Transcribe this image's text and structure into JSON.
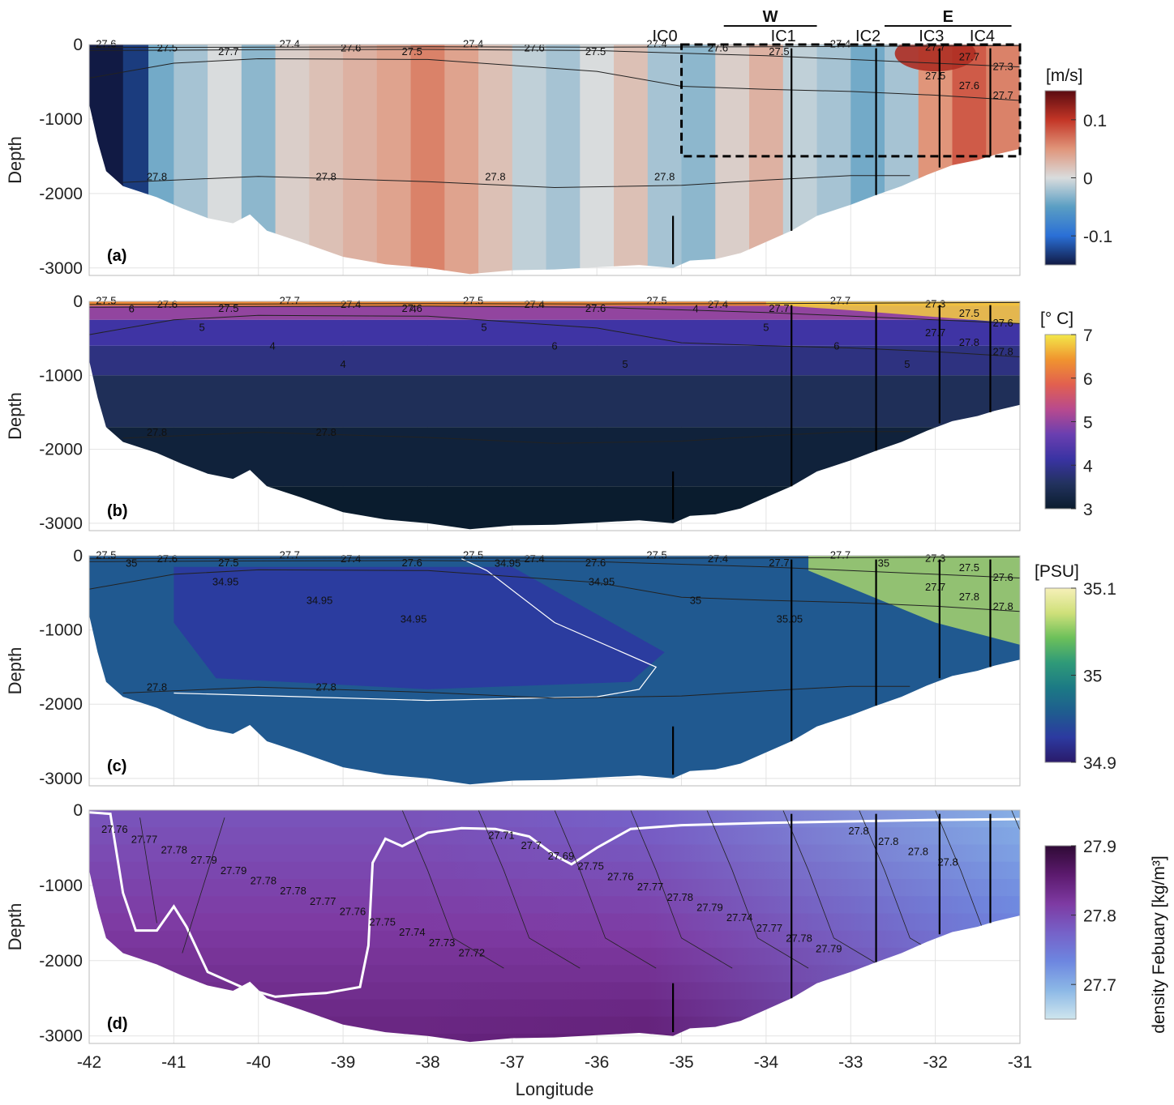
{
  "chart_data": [
    {
      "type": "heatmap",
      "panel_label": "(a)",
      "quantity_units": "[m/s]",
      "ylabel": "Depth",
      "ylim": [
        -3100,
        0
      ],
      "xlim": [
        -42,
        -31
      ],
      "yticks": [
        "0",
        "-1000",
        "-2000",
        "-3000"
      ],
      "color_range": [
        -0.15,
        0.15
      ],
      "colorbar_ticks": [
        "0.1",
        "0",
        "-0.1"
      ],
      "colorbar_tick_values": [
        0.1,
        0,
        -0.1
      ],
      "colormap": [
        "#111a44",
        "#2a6fd6",
        "#5a9ec3",
        "#d9dcdd",
        "#e0957a",
        "#c33526",
        "#5a0b10"
      ],
      "columns": [
        {
          "lon": -42.0,
          "v": -0.15
        },
        {
          "lon": -41.6,
          "v": -0.13
        },
        {
          "lon": -41.3,
          "v": -0.04
        },
        {
          "lon": -41.0,
          "v": -0.02
        },
        {
          "lon": -40.6,
          "v": 0.0
        },
        {
          "lon": -40.2,
          "v": -0.03
        },
        {
          "lon": -39.8,
          "v": 0.01
        },
        {
          "lon": -39.4,
          "v": 0.02
        },
        {
          "lon": -39.0,
          "v": 0.03
        },
        {
          "lon": -38.6,
          "v": 0.04
        },
        {
          "lon": -38.2,
          "v": 0.06
        },
        {
          "lon": -37.8,
          "v": 0.04
        },
        {
          "lon": -37.4,
          "v": 0.02
        },
        {
          "lon": -37.0,
          "v": -0.01
        },
        {
          "lon": -36.6,
          "v": -0.02
        },
        {
          "lon": -36.2,
          "v": 0.0
        },
        {
          "lon": -35.8,
          "v": 0.02
        },
        {
          "lon": -35.4,
          "v": -0.02
        },
        {
          "lon": -35.0,
          "v": -0.03
        },
        {
          "lon": -34.6,
          "v": 0.01
        },
        {
          "lon": -34.2,
          "v": 0.03
        },
        {
          "lon": -33.8,
          "v": -0.01
        },
        {
          "lon": -33.4,
          "v": -0.02
        },
        {
          "lon": -33.0,
          "v": -0.04
        },
        {
          "lon": -32.6,
          "v": -0.02
        },
        {
          "lon": -32.2,
          "v": 0.05
        },
        {
          "lon": -31.8,
          "v": 0.08
        },
        {
          "lon": -31.4,
          "v": 0.06
        },
        {
          "lon": -31.0,
          "v": 0.04
        }
      ],
      "isopycnals": [
        {
          "level": "27.5",
          "points": [
            [
              -42,
              -40
            ],
            [
              -40,
              -35
            ],
            [
              -38,
              -30
            ],
            [
              -36,
              -35
            ],
            [
              -34,
              -30
            ],
            [
              -32,
              -20
            ],
            [
              -31,
              -15
            ]
          ]
        },
        {
          "level": "27.6",
          "points": [
            [
              -42,
              -80
            ],
            [
              -40,
              -70
            ],
            [
              -38,
              -65
            ],
            [
              -36,
              -80
            ],
            [
              -34,
              -150
            ],
            [
              -32,
              -250
            ],
            [
              -31,
              -300
            ]
          ]
        },
        {
          "level": "27.7",
          "points": [
            [
              -42,
              -450
            ],
            [
              -41,
              -250
            ],
            [
              -40,
              -190
            ],
            [
              -38,
              -200
            ],
            [
              -36,
              -360
            ],
            [
              -35,
              -560
            ],
            [
              -34,
              -600
            ],
            [
              -33,
              -630
            ],
            [
              -32,
              -680
            ],
            [
              -31,
              -750
            ]
          ]
        },
        {
          "level": "27.8",
          "points": [
            [
              -41.6,
              -1850
            ],
            [
              -40,
              -1770
            ],
            [
              -38,
              -1840
            ],
            [
              -36.5,
              -1920
            ],
            [
              -35,
              -1890
            ],
            [
              -34,
              -1820
            ],
            [
              -33,
              -1760
            ],
            [
              -32.3,
              -1760
            ]
          ]
        }
      ],
      "contour_labels": [
        "27.6",
        "27.5",
        "27.7",
        "27.4",
        "27.6",
        "27.5",
        "27.4",
        "27.6",
        "27.5",
        "27.4",
        "27.6",
        "27.5",
        "27.4",
        "27.7",
        "27.7",
        "27.3",
        "27.5",
        "27.6",
        "27.7",
        "27.8",
        "27.8",
        "27.8",
        "27.8"
      ],
      "moorings": [
        {
          "name": "IC0",
          "lon": -35.1,
          "bottom": -2950,
          "top": -2300
        },
        {
          "name": "IC1",
          "lon": -33.7,
          "bottom": -2500,
          "top": -50
        },
        {
          "name": "IC2",
          "lon": -32.7,
          "bottom": -2020,
          "top": -50
        },
        {
          "name": "IC3",
          "lon": -31.95,
          "bottom": -1650,
          "top": -50
        },
        {
          "name": "IC4",
          "lon": -31.35,
          "bottom": -1500,
          "top": -50
        }
      ],
      "regions": [
        {
          "name": "W",
          "lon_start": -34.5,
          "lon_end": -33.4
        },
        {
          "name": "E",
          "lon_start": -32.6,
          "lon_end": -31.1
        }
      ],
      "box": {
        "lon_start": -35,
        "lon_end": -31,
        "depth_start": 0,
        "depth_end": -1500
      }
    },
    {
      "type": "heatmap",
      "panel_label": "(b)",
      "quantity_units": "[° C]",
      "ylabel": "Depth",
      "ylim": [
        -3100,
        0
      ],
      "xlim": [
        -42,
        -31
      ],
      "yticks": [
        "0",
        "-1000",
        "-2000",
        "-3000"
      ],
      "color_range": [
        3,
        7
      ],
      "colorbar_ticks": [
        "7",
        "6",
        "5",
        "4",
        "3"
      ],
      "colorbar_tick_values": [
        7,
        6,
        5,
        4,
        3
      ],
      "colormap": [
        "#0a1c2e",
        "#22325e",
        "#3a33a3",
        "#6b3fb0",
        "#b84a8e",
        "#e2604f",
        "#f0942f",
        "#f3e84a"
      ],
      "layers": [
        {
          "top": 0,
          "bottom": -60,
          "value": 6.3
        },
        {
          "top": -60,
          "bottom": -250,
          "value": 5.0
        },
        {
          "top": -250,
          "bottom": -600,
          "value": 4.2
        },
        {
          "top": -600,
          "bottom": -1000,
          "value": 3.85
        },
        {
          "top": -1000,
          "bottom": -1700,
          "value": 3.5
        },
        {
          "top": -1700,
          "bottom": -2500,
          "value": 3.15
        },
        {
          "top": -2500,
          "bottom": -3200,
          "value": 3.0
        }
      ],
      "isotherm_labels": [
        "6",
        "5",
        "4",
        "4",
        "4",
        "5",
        "6",
        "5",
        "4",
        "5",
        "6",
        "5"
      ],
      "contour_labels": [
        "27.5",
        "27.6",
        "27.5",
        "27.7",
        "27.4",
        "27.6",
        "27.5",
        "27.4",
        "27.6",
        "27.5",
        "27.4",
        "27.7",
        "27.7",
        "27.3",
        "27.5",
        "27.6",
        "27.7",
        "27.8",
        "27.8",
        "27.8",
        "27.8"
      ]
    },
    {
      "type": "heatmap",
      "panel_label": "(c)",
      "quantity_units": "[PSU]",
      "ylabel": "Depth",
      "ylim": [
        -3100,
        0
      ],
      "xlim": [
        -42,
        -31
      ],
      "yticks": [
        "0",
        "-1000",
        "-2000",
        "-3000"
      ],
      "color_range": [
        34.9,
        35.1
      ],
      "colorbar_ticks": [
        "35.1",
        "35",
        "34.9"
      ],
      "colorbar_tick_values": [
        35.1,
        35.0,
        34.9
      ],
      "colormap": [
        "#2a1a6a",
        "#2c3aa0",
        "#1f5c8f",
        "#1c7a85",
        "#2f9a78",
        "#6cc05a",
        "#cfe07a",
        "#f6f0b8"
      ],
      "salinity_core": {
        "lon_start": -41,
        "lon_end": -35.2,
        "depth_top": -150,
        "depth_bottom": -1700,
        "value": 34.93
      },
      "isohaline_labels": [
        "35",
        "34.95",
        "34.95",
        "34.95",
        "34.95",
        "34.95",
        "35",
        "35.05",
        "35"
      ],
      "contour_labels": [
        "27.5",
        "27.6",
        "27.5",
        "27.7",
        "27.4",
        "27.6",
        "27.5",
        "27.4",
        "27.6",
        "27.5",
        "27.4",
        "27.7",
        "27.7",
        "27.3",
        "27.5",
        "27.6",
        "27.7",
        "27.8",
        "27.8",
        "27.8",
        "27.8"
      ]
    },
    {
      "type": "heatmap",
      "panel_label": "(d)",
      "quantity_units": "density Febuary [kg/m³]",
      "ylabel": "Depth",
      "xlabel": "Longitude",
      "ylim": [
        -3100,
        0
      ],
      "xlim": [
        -42,
        -31
      ],
      "yticks": [
        "0",
        "-1000",
        "-2000",
        "-3000"
      ],
      "xticks": [
        "-42",
        "-41",
        "-40",
        "-39",
        "-38",
        "-37",
        "-36",
        "-35",
        "-34",
        "-33",
        "-32",
        "-31"
      ],
      "color_range": [
        27.65,
        27.9
      ],
      "colorbar_ticks": [
        "27.9",
        "27.8",
        "27.7"
      ],
      "colorbar_tick_values": [
        27.9,
        27.8,
        27.7
      ],
      "colormap": [
        "#cfe6ee",
        "#8cb8e6",
        "#6d86e0",
        "#7661c8",
        "#7e3aa2",
        "#5c1a6e",
        "#2f0a35"
      ],
      "contour_labels": [
        "27.76",
        "27.77",
        "27.78",
        "27.79",
        "27.79",
        "27.78",
        "27.78",
        "27.77",
        "27.76",
        "27.75",
        "27.74",
        "27.73",
        "27.72",
        "27.71",
        "27.7",
        "27.69",
        "27.75",
        "27.76",
        "27.77",
        "27.78",
        "27.79",
        "27.74",
        "27.77",
        "27.78",
        "27.79",
        "27.8",
        "27.8",
        "27.8",
        "27.8"
      ],
      "mixed_layer_depth": [
        [
          -42,
          -30
        ],
        [
          -41.75,
          -50
        ],
        [
          -41.6,
          -1100
        ],
        [
          -41.45,
          -1600
        ],
        [
          -41.2,
          -1600
        ],
        [
          -41.0,
          -1280
        ],
        [
          -40.85,
          -1550
        ],
        [
          -40.6,
          -2150
        ],
        [
          -40.2,
          -2350
        ],
        [
          -39.8,
          -2480
        ],
        [
          -39.5,
          -2450
        ],
        [
          -39.2,
          -2430
        ],
        [
          -38.8,
          -2350
        ],
        [
          -38.7,
          -1800
        ],
        [
          -38.65,
          -700
        ],
        [
          -38.5,
          -380
        ],
        [
          -38.3,
          -480
        ],
        [
          -38.0,
          -300
        ],
        [
          -37.6,
          -240
        ],
        [
          -37.2,
          -250
        ],
        [
          -36.8,
          -350
        ],
        [
          -36.5,
          -600
        ],
        [
          -36.3,
          -720
        ],
        [
          -36.0,
          -500
        ],
        [
          -35.6,
          -250
        ],
        [
          -35.0,
          -200
        ],
        [
          -34.0,
          -170
        ],
        [
          -33.0,
          -150
        ],
        [
          -32.0,
          -130
        ],
        [
          -31.0,
          -120
        ]
      ]
    }
  ],
  "colors": {
    "frame": "#bbbbbb",
    "grid": "#e3e3e3",
    "isopycnal": "#222222",
    "isoline": "#ffffff"
  }
}
